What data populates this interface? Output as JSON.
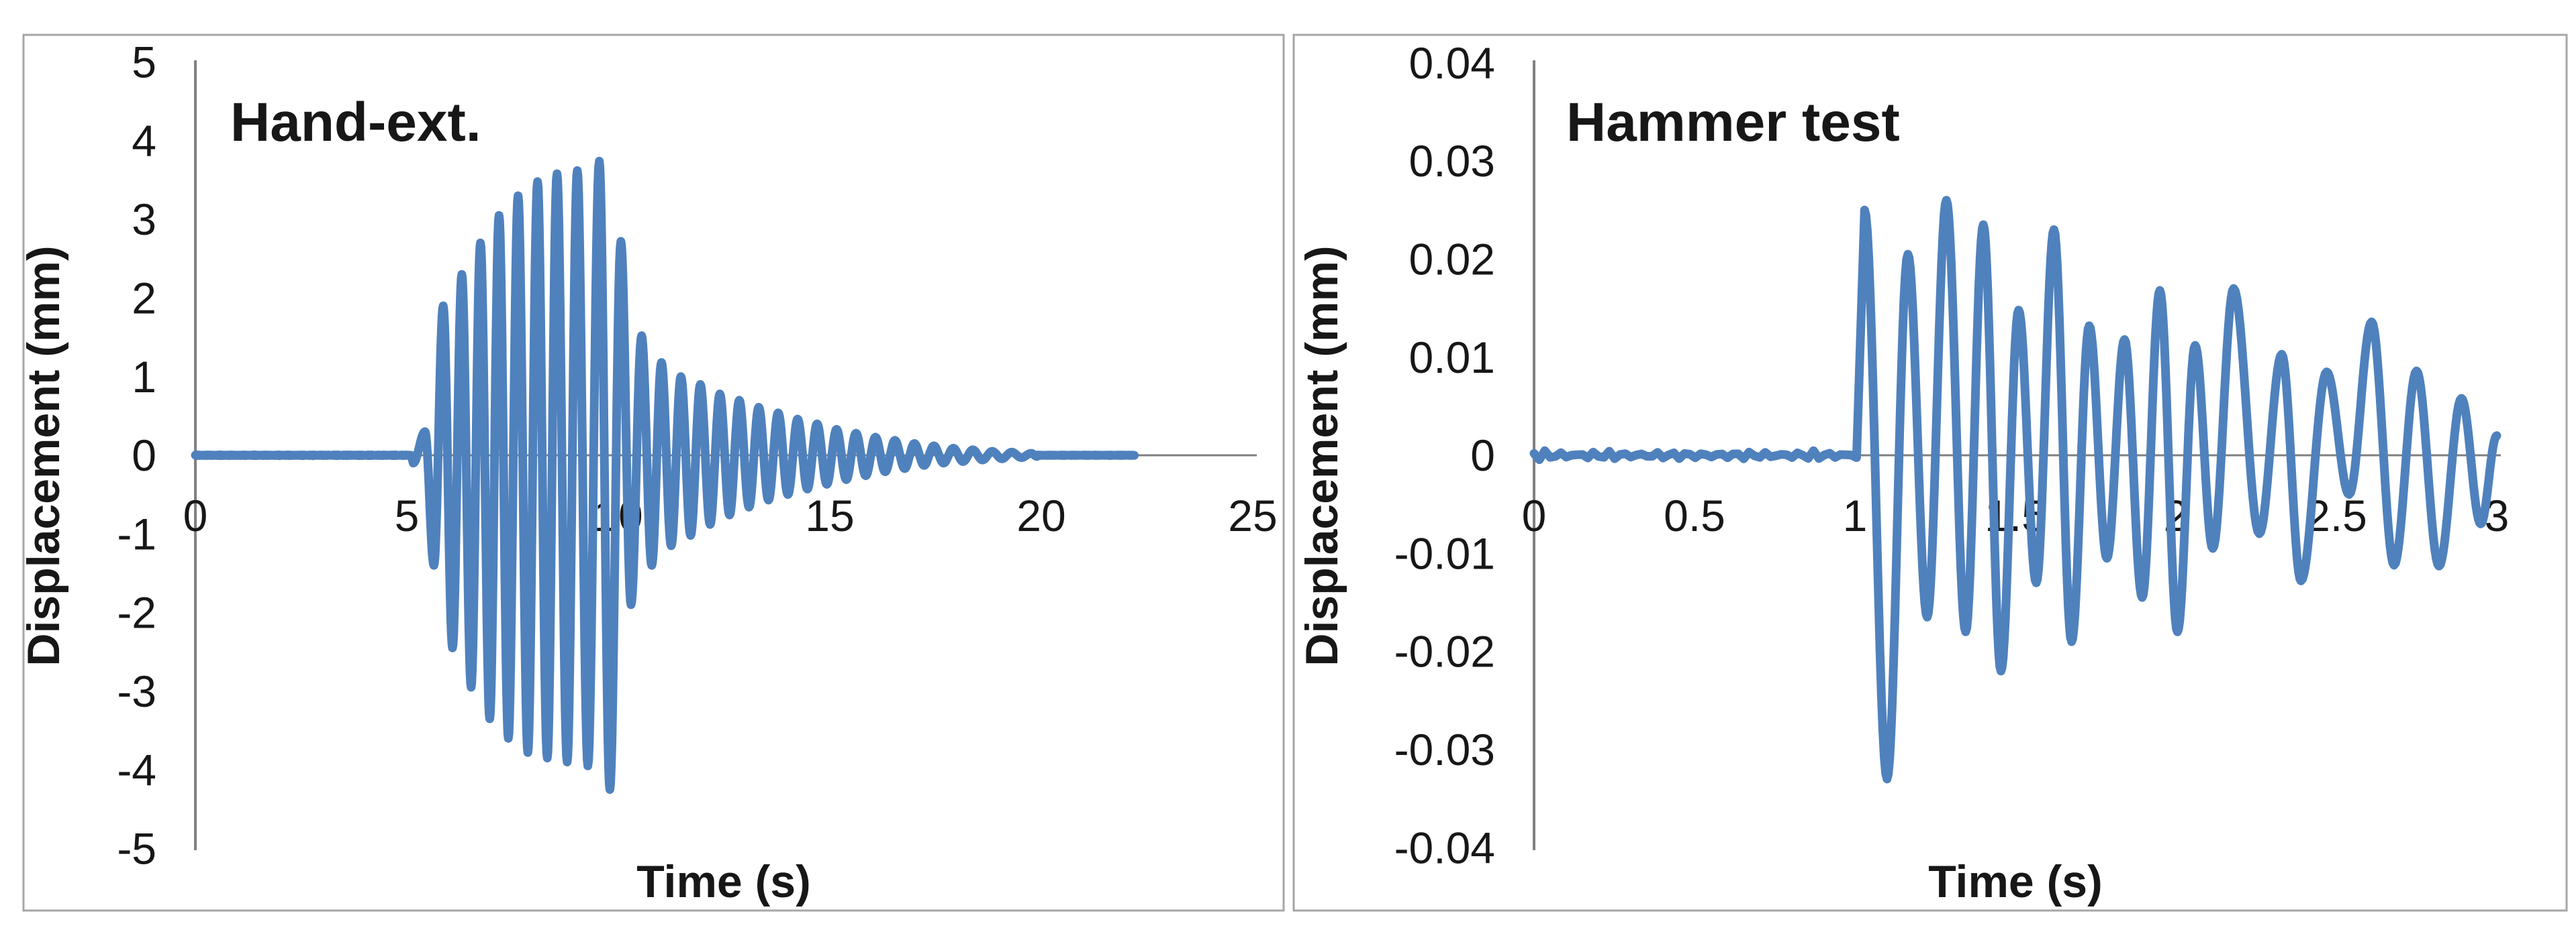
{
  "figure": {
    "description": "Two side-by-side displacement time-history charts",
    "border_color": "#A6A6A6",
    "background_color": "#FFFFFF",
    "text_color": "#171717"
  },
  "chart_data": [
    {
      "type": "line",
      "title": "Hand-ext.",
      "xlabel": "Time (s)",
      "ylabel": "Displacement (mm)",
      "xlim": [
        0,
        25
      ],
      "ylim": [
        -5,
        5
      ],
      "xticks": [
        0,
        5,
        10,
        15,
        20,
        25
      ],
      "xtick_labels": [
        "0",
        "5",
        "10",
        "15",
        "20",
        "25"
      ],
      "yticks": [
        5,
        4,
        3,
        2,
        1,
        0,
        -1,
        -2,
        -3,
        -4,
        -5
      ],
      "ytick_labels": [
        "5",
        "4",
        "3",
        "2",
        "1",
        "0",
        "-1",
        "-2",
        "-3",
        "-4",
        "-5"
      ],
      "grid": false,
      "legend": "none",
      "line_color": "#4F81BD",
      "axis_color": "#808080",
      "series": [
        {
          "segments": [
            {
              "type": "flat",
              "t_start": 0,
              "t_end": 5.1,
              "noise_amp": 0.006
            },
            {
              "type": "oscillation",
              "extrema": [
                [
                  5.15,
                  -0.1
                ],
                [
                  5.43,
                  0.3
                ],
                [
                  5.64,
                  -1.4
                ],
                [
                  5.86,
                  1.9
                ],
                [
                  6.08,
                  -2.45
                ],
                [
                  6.3,
                  2.3
                ],
                [
                  6.52,
                  -2.95
                ],
                [
                  6.74,
                  2.7
                ],
                [
                  6.96,
                  -3.35
                ],
                [
                  7.18,
                  3.05
                ],
                [
                  7.4,
                  -3.6
                ],
                [
                  7.63,
                  3.3
                ],
                [
                  7.86,
                  -3.78
                ],
                [
                  8.09,
                  3.48
                ],
                [
                  8.32,
                  -3.85
                ],
                [
                  8.55,
                  3.58
                ],
                [
                  8.79,
                  -3.9
                ],
                [
                  9.03,
                  3.62
                ],
                [
                  9.28,
                  -3.95
                ],
                [
                  9.55,
                  3.74
                ],
                [
                  9.8,
                  -4.25
                ],
                [
                  10.06,
                  2.72
                ],
                [
                  10.3,
                  -1.9
                ],
                [
                  10.55,
                  1.52
                ],
                [
                  10.79,
                  -1.4
                ],
                [
                  11.02,
                  1.18
                ],
                [
                  11.25,
                  -1.15
                ],
                [
                  11.48,
                  1.0
                ],
                [
                  11.71,
                  -1.02
                ],
                [
                  11.94,
                  0.9
                ],
                [
                  12.17,
                  -0.88
                ],
                [
                  12.4,
                  0.78
                ],
                [
                  12.63,
                  -0.76
                ],
                [
                  12.86,
                  0.7
                ],
                [
                  13.09,
                  -0.66
                ],
                [
                  13.32,
                  0.61
                ],
                [
                  13.55,
                  -0.57
                ],
                [
                  13.78,
                  0.54
                ],
                [
                  14.01,
                  -0.5
                ],
                [
                  14.24,
                  0.46
                ],
                [
                  14.47,
                  -0.43
                ],
                [
                  14.7,
                  0.4
                ],
                [
                  14.93,
                  -0.37
                ],
                [
                  15.16,
                  0.33
                ],
                [
                  15.39,
                  -0.31
                ],
                [
                  15.62,
                  0.28
                ],
                [
                  15.85,
                  -0.26
                ],
                [
                  16.08,
                  0.23
                ],
                [
                  16.31,
                  -0.21
                ],
                [
                  16.54,
                  0.19
                ],
                [
                  16.77,
                  -0.17
                ],
                [
                  17.0,
                  0.15
                ],
                [
                  17.23,
                  -0.13
                ],
                [
                  17.46,
                  0.12
                ],
                [
                  17.69,
                  -0.1
                ],
                [
                  17.92,
                  0.09
                ],
                [
                  18.15,
                  -0.08
                ],
                [
                  18.38,
                  0.07
                ],
                [
                  18.61,
                  -0.06
                ],
                [
                  18.84,
                  0.05
                ],
                [
                  19.07,
                  -0.045
                ],
                [
                  19.3,
                  0.04
                ],
                [
                  19.53,
                  -0.03
                ],
                [
                  19.76,
                  0.025
                ],
                [
                  19.9,
                  -0.015
                ]
              ]
            },
            {
              "type": "flat",
              "t_start": 19.9,
              "t_end": 22.2,
              "noise_amp": 0.004
            }
          ]
        }
      ]
    },
    {
      "type": "line",
      "title": "Hammer test",
      "xlabel": "Time (s)",
      "ylabel": "Displacement (mm)",
      "xlim": [
        0,
        3
      ],
      "ylim": [
        -0.04,
        0.04
      ],
      "xticks": [
        0,
        0.5,
        1,
        1.5,
        2,
        2.5,
        3
      ],
      "xtick_labels": [
        "0",
        "0.5",
        "1",
        "1.5",
        "2",
        "2.5",
        "3"
      ],
      "yticks": [
        0.04,
        0.03,
        0.02,
        0.01,
        0,
        -0.01,
        -0.02,
        -0.03,
        -0.04
      ],
      "ytick_labels": [
        "0.04",
        "0.03",
        "0.02",
        "0.01",
        "0",
        "-0.01",
        "-0.02",
        "-0.03",
        "-0.04"
      ],
      "grid": false,
      "legend": "none",
      "line_color": "#4F81BD",
      "axis_color": "#808080",
      "series": [
        {
          "segments": [
            {
              "type": "flat",
              "t_start": 0,
              "t_end": 1.005,
              "noise_amp": 0.0005
            },
            {
              "type": "oscillation",
              "extrema": [
                [
                  1.03,
                  0.025
                ],
                [
                  1.1,
                  -0.033
                ],
                [
                  1.165,
                  0.0205
                ],
                [
                  1.225,
                  -0.0165
                ],
                [
                  1.285,
                  0.026
                ],
                [
                  1.345,
                  -0.018
                ],
                [
                  1.4,
                  0.0235
                ],
                [
                  1.455,
                  -0.022
                ],
                [
                  1.51,
                  0.0148
                ],
                [
                  1.565,
                  -0.013
                ],
                [
                  1.62,
                  0.023
                ],
                [
                  1.675,
                  -0.019
                ],
                [
                  1.73,
                  0.0132
                ],
                [
                  1.785,
                  -0.0105
                ],
                [
                  1.84,
                  0.0118
                ],
                [
                  1.895,
                  -0.0145
                ],
                [
                  1.95,
                  0.0168
                ],
                [
                  2.005,
                  -0.018
                ],
                [
                  2.06,
                  0.0112
                ],
                [
                  2.115,
                  -0.0095
                ],
                [
                  2.18,
                  0.017
                ],
                [
                  2.26,
                  -0.008
                ],
                [
                  2.33,
                  0.0103
                ],
                [
                  2.39,
                  -0.0128
                ],
                [
                  2.47,
                  0.0085
                ],
                [
                  2.54,
                  -0.004
                ],
                [
                  2.61,
                  0.0136
                ],
                [
                  2.68,
                  -0.0112
                ],
                [
                  2.75,
                  0.0086
                ],
                [
                  2.82,
                  -0.0113
                ],
                [
                  2.89,
                  0.0058
                ],
                [
                  2.95,
                  -0.007
                ],
                [
                  3.0,
                  0.002
                ]
              ]
            }
          ]
        }
      ]
    }
  ]
}
